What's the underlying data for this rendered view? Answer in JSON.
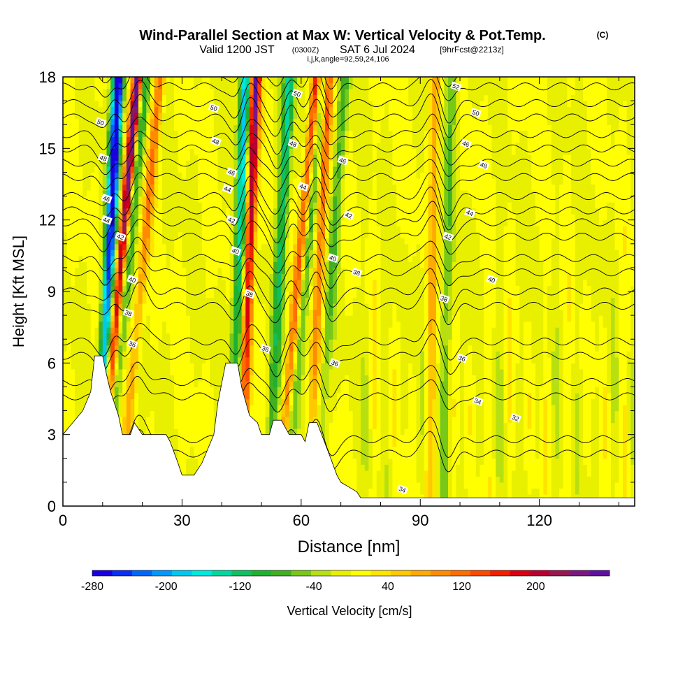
{
  "chart_data": {
    "type": "heatmap",
    "title": "Wind-Parallel Section at Max W: Vertical Velocity & Pot.Temp.",
    "copyright_mark": "(C)",
    "subtitle_valid": "Valid 1200 JST",
    "subtitle_utc": "(0300Z)",
    "subtitle_date": "SAT 6 Jul 2024",
    "subtitle_fcst": "[9hrFcst@2213z]",
    "subtitle_indices": "i,j,k,angle=92,59,24,106",
    "xlabel": "Distance [nm]",
    "ylabel": "Height [Kft MSL]",
    "xlim": [
      0,
      144
    ],
    "ylim": [
      0,
      18
    ],
    "x_ticks": [
      0,
      30,
      60,
      90,
      120
    ],
    "y_ticks": [
      0,
      3,
      6,
      9,
      12,
      15,
      18
    ],
    "colorbar": {
      "label": "Vertical Velocity [cm/s]",
      "tick_labels": [
        "-280",
        "-200",
        "-120",
        "-40",
        "40",
        "120",
        "200"
      ],
      "tick_values": [
        -280,
        -200,
        -120,
        -40,
        40,
        120,
        200
      ],
      "range": [
        -280,
        280
      ],
      "colors": [
        "#1a00e0",
        "#0a2ff5",
        "#0066ff",
        "#0099ff",
        "#00c8f0",
        "#00e8e0",
        "#00d8a0",
        "#10c060",
        "#20b030",
        "#40b020",
        "#78c818",
        "#b8e010",
        "#e8f000",
        "#ffff00",
        "#ffe400",
        "#ffc800",
        "#ffaa00",
        "#ff8c00",
        "#ff6e00",
        "#ff4800",
        "#f02000",
        "#d80010",
        "#b80030",
        "#981850",
        "#7a1880",
        "#6010a0"
      ]
    },
    "terrain": [
      [
        0,
        3
      ],
      [
        1.5,
        3.3
      ],
      [
        3,
        3.6
      ],
      [
        5,
        4
      ],
      [
        7,
        4.8
      ],
      [
        8,
        6.3
      ],
      [
        10,
        6.3
      ],
      [
        11,
        5.5
      ],
      [
        12,
        4.8
      ],
      [
        14,
        3.8
      ],
      [
        15,
        3
      ],
      [
        17,
        3
      ],
      [
        18,
        3.5
      ],
      [
        20,
        3
      ],
      [
        26,
        3
      ],
      [
        27,
        2.7
      ],
      [
        29,
        1.8
      ],
      [
        30,
        1.3
      ],
      [
        33,
        1.3
      ],
      [
        35,
        1.8
      ],
      [
        38,
        3
      ],
      [
        39,
        4.3
      ],
      [
        41,
        6
      ],
      [
        44,
        6
      ],
      [
        45,
        5
      ],
      [
        47,
        3.8
      ],
      [
        49,
        3.5
      ],
      [
        50,
        3
      ],
      [
        52,
        3
      ],
      [
        53,
        3.6
      ],
      [
        55,
        3.6
      ],
      [
        57,
        3
      ],
      [
        60,
        3
      ],
      [
        61,
        2.7
      ],
      [
        62,
        3.5
      ],
      [
        64,
        3.5
      ],
      [
        67,
        2.2
      ],
      [
        69,
        1.3
      ],
      [
        70,
        1
      ],
      [
        72,
        0.8
      ],
      [
        74,
        0.6
      ],
      [
        75,
        0.35
      ],
      [
        144,
        0.35
      ]
    ],
    "updraft_bands": [
      {
        "x": 13.5,
        "slope": 0.55,
        "peak": 240
      },
      {
        "x": 19,
        "slope": 0.55,
        "peak": 90
      },
      {
        "x": 46.5,
        "slope": 0.2,
        "peak": 200
      },
      {
        "x": 58.5,
        "slope": 0.55,
        "peak": 150
      },
      {
        "x": 64,
        "slope": 0.3,
        "peak": 100
      },
      {
        "x": 93,
        "slope": 0.1,
        "peak": 60
      }
    ],
    "downdraft_bands": [
      {
        "x": 11,
        "slope": 0.3,
        "peak": -270
      },
      {
        "x": 15,
        "slope": 0.55,
        "peak": -120
      },
      {
        "x": 44,
        "slope": 0.2,
        "peak": -160
      },
      {
        "x": 54,
        "slope": 0.3,
        "peak": -120
      },
      {
        "x": 60,
        "slope": 0.5,
        "peak": -100
      },
      {
        "x": 67,
        "slope": 0.4,
        "peak": -70
      },
      {
        "x": 97,
        "slope": 0.1,
        "peak": -60
      }
    ],
    "isentrope_values": [
      32,
      34,
      36,
      38,
      40,
      42,
      44,
      46,
      48,
      50,
      52
    ],
    "isentrope_labels": [
      {
        "text": "50",
        "x": 9.5,
        "y": 16.1
      },
      {
        "text": "48",
        "x": 10.2,
        "y": 14.6
      },
      {
        "text": "46",
        "x": 11,
        "y": 12.9
      },
      {
        "text": "44",
        "x": 11,
        "y": 12.0
      },
      {
        "text": "42",
        "x": 14.5,
        "y": 11.3
      },
      {
        "text": "40",
        "x": 17.5,
        "y": 9.5
      },
      {
        "text": "38",
        "x": 16.5,
        "y": 8.1
      },
      {
        "text": "36",
        "x": 17.5,
        "y": 6.8
      },
      {
        "text": "50",
        "x": 38,
        "y": 16.7
      },
      {
        "text": "48",
        "x": 38.5,
        "y": 15.3
      },
      {
        "text": "46",
        "x": 42.5,
        "y": 14.0
      },
      {
        "text": "44",
        "x": 41.5,
        "y": 13.3
      },
      {
        "text": "42",
        "x": 42.5,
        "y": 12.0
      },
      {
        "text": "40",
        "x": 43.5,
        "y": 10.7
      },
      {
        "text": "38",
        "x": 47,
        "y": 8.9
      },
      {
        "text": "36",
        "x": 51,
        "y": 6.6
      },
      {
        "text": "50",
        "x": 59,
        "y": 17.3
      },
      {
        "text": "48",
        "x": 58,
        "y": 15.2
      },
      {
        "text": "46",
        "x": 70.5,
        "y": 14.5
      },
      {
        "text": "44",
        "x": 60.5,
        "y": 13.4
      },
      {
        "text": "42",
        "x": 72,
        "y": 12.2
      },
      {
        "text": "40",
        "x": 68,
        "y": 10.4
      },
      {
        "text": "38",
        "x": 74,
        "y": 9.8
      },
      {
        "text": "36",
        "x": 68.5,
        "y": 6.0
      },
      {
        "text": "52",
        "x": 99,
        "y": 17.6
      },
      {
        "text": "50",
        "x": 104,
        "y": 16.5
      },
      {
        "text": "46",
        "x": 101.5,
        "y": 15.2
      },
      {
        "text": "48",
        "x": 106,
        "y": 14.3
      },
      {
        "text": "44",
        "x": 102.5,
        "y": 12.3
      },
      {
        "text": "42",
        "x": 97,
        "y": 11.3
      },
      {
        "text": "40",
        "x": 108,
        "y": 9.5
      },
      {
        "text": "38",
        "x": 96,
        "y": 8.7
      },
      {
        "text": "36",
        "x": 100.5,
        "y": 6.2
      },
      {
        "text": "34",
        "x": 104.5,
        "y": 4.4
      },
      {
        "text": "32",
        "x": 114,
        "y": 3.7
      },
      {
        "text": "34",
        "x": 85.5,
        "y": 0.7
      }
    ]
  }
}
